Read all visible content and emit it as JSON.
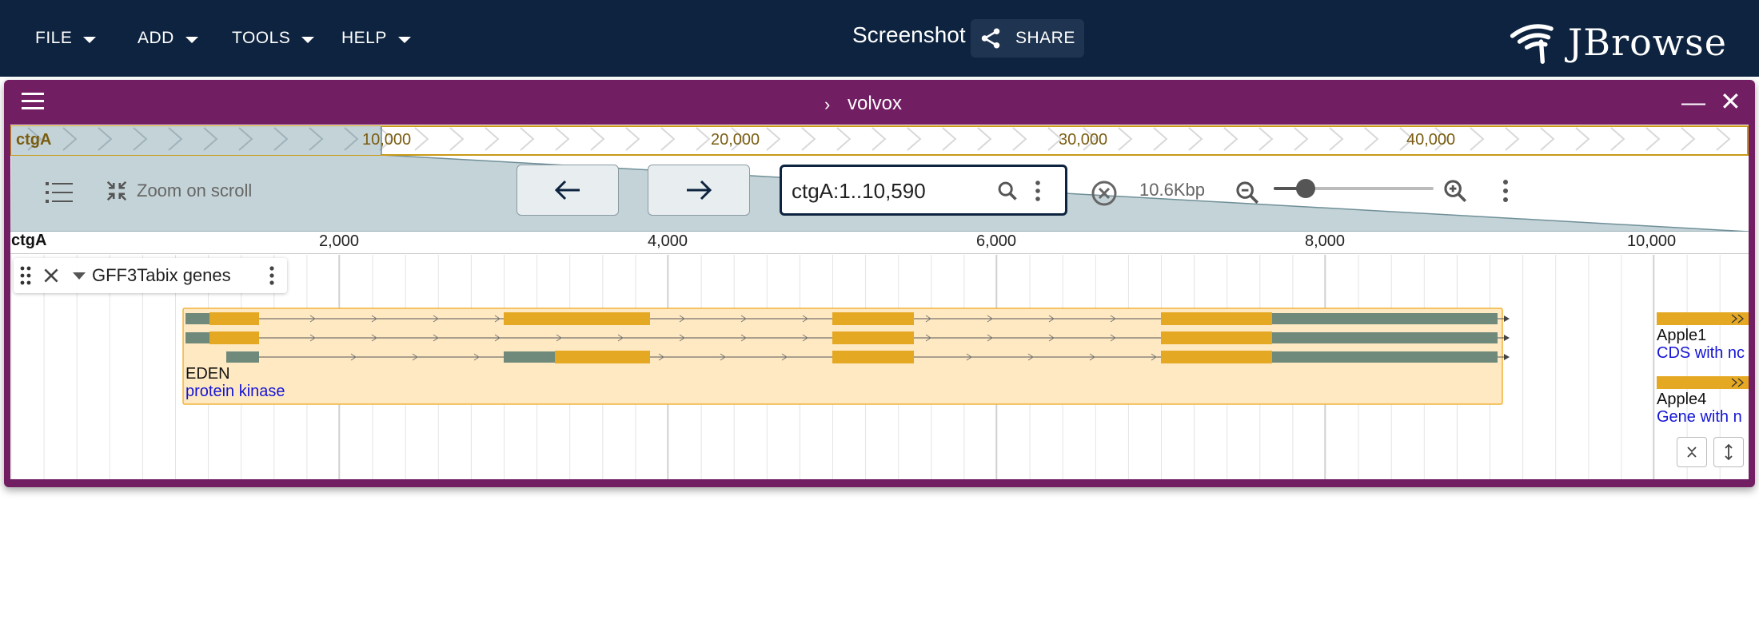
{
  "appbar": {
    "menus": [
      {
        "label": "FILE"
      },
      {
        "label": "ADD"
      },
      {
        "label": "TOOLS"
      },
      {
        "label": "HELP"
      }
    ],
    "session_name": "Screenshot",
    "share_label": "SHARE",
    "logo_text": "JBrowse",
    "background": "#0d233f"
  },
  "view": {
    "title": "volvox",
    "frame_color": "#721e63",
    "overview": {
      "ref_name": "ctgA",
      "tick_labels": [
        "10,000",
        "20,000",
        "30,000",
        "40,000"
      ]
    },
    "controls": {
      "zoom_on_scroll_label": "Zoom on scroll",
      "location_value": "ctgA:1..10,590",
      "bp_per_view": "10.6Kbp",
      "zoom_level": 0.2
    },
    "ruler": {
      "ref_name": "ctgA",
      "tick_labels": [
        "2,000",
        "4,000",
        "6,000",
        "8,000",
        "10,000"
      ]
    },
    "track": {
      "name": "GFF3Tabix genes",
      "features": [
        {
          "name": "EDEN",
          "description": "protein kinase"
        },
        {
          "name": "Apple1",
          "description": "CDS with nc"
        },
        {
          "name": "Apple4",
          "description": "Gene with n"
        }
      ],
      "utr_color": "#6f8a7a",
      "cds_color": "#e5a823",
      "highlight_color": "#ffe9c2"
    }
  }
}
